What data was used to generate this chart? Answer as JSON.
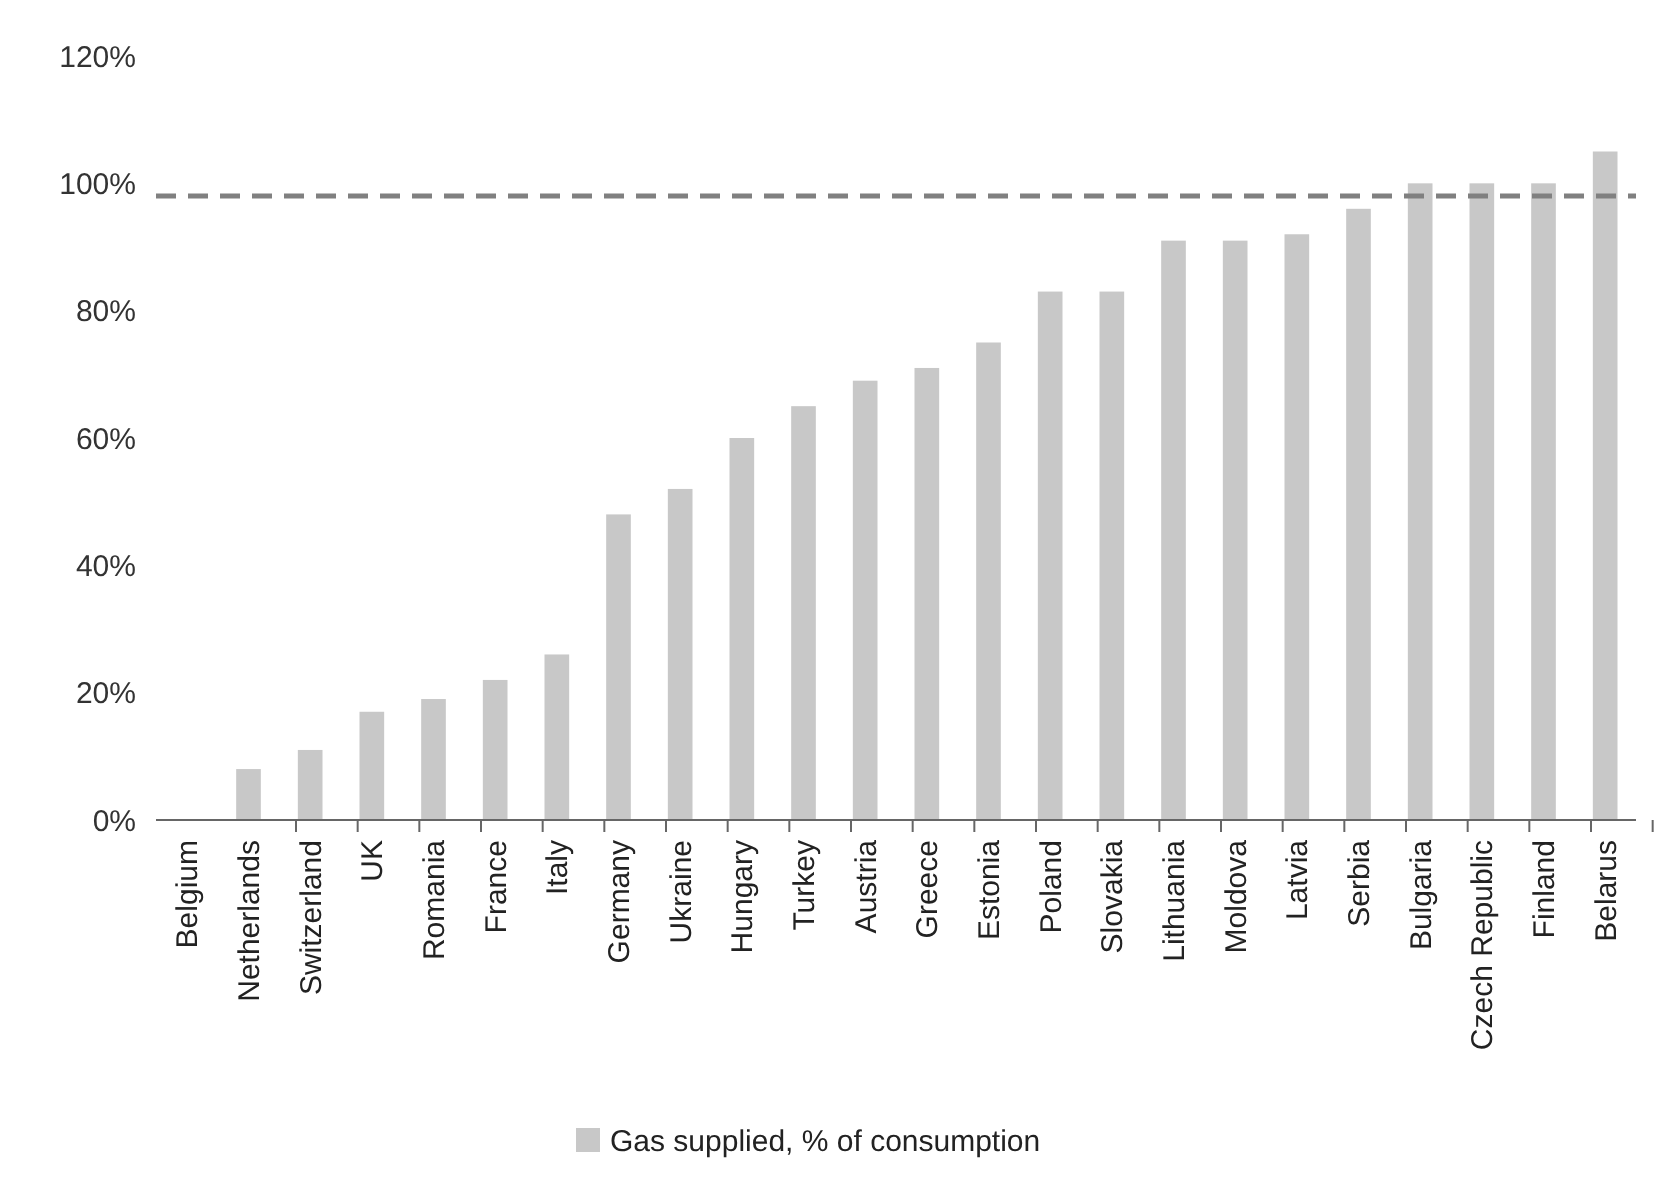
{
  "chart_data": {
    "type": "bar",
    "categories": [
      "Belgium",
      "Netherlands",
      "Switzerland",
      "UK",
      "Romania",
      "France",
      "Italy",
      "Germany",
      "Ukraine",
      "Hungary",
      "Turkey",
      "Austria",
      "Greece",
      "Estonia",
      "Poland",
      "Slovakia",
      "Lithuania",
      "Moldova",
      "Latvia",
      "Serbia",
      "Bulgaria",
      "Czech Republic",
      "Finland",
      "Belarus"
    ],
    "series": [
      {
        "name": "Gas supplied, % of consumption",
        "color": "#c8c8c8",
        "values": [
          0,
          8,
          11,
          17,
          19,
          22,
          26,
          48,
          52,
          60,
          65,
          69,
          71,
          75,
          83,
          83,
          91,
          91,
          92,
          96,
          100,
          100,
          100,
          105
        ]
      }
    ],
    "ylim": [
      0,
      120
    ],
    "yticks": [
      {
        "value": 0,
        "label": "0%"
      },
      {
        "value": 20,
        "label": "20%"
      },
      {
        "value": 40,
        "label": "40%"
      },
      {
        "value": 60,
        "label": "60%"
      },
      {
        "value": 80,
        "label": "80%"
      },
      {
        "value": 100,
        "label": "100%"
      },
      {
        "value": 120,
        "label": "120%"
      }
    ],
    "ref_lines": [
      {
        "axis": "y",
        "value": 98,
        "color": "#808080",
        "line_style": "dashed"
      }
    ],
    "grid": false,
    "legend": "bottom"
  }
}
